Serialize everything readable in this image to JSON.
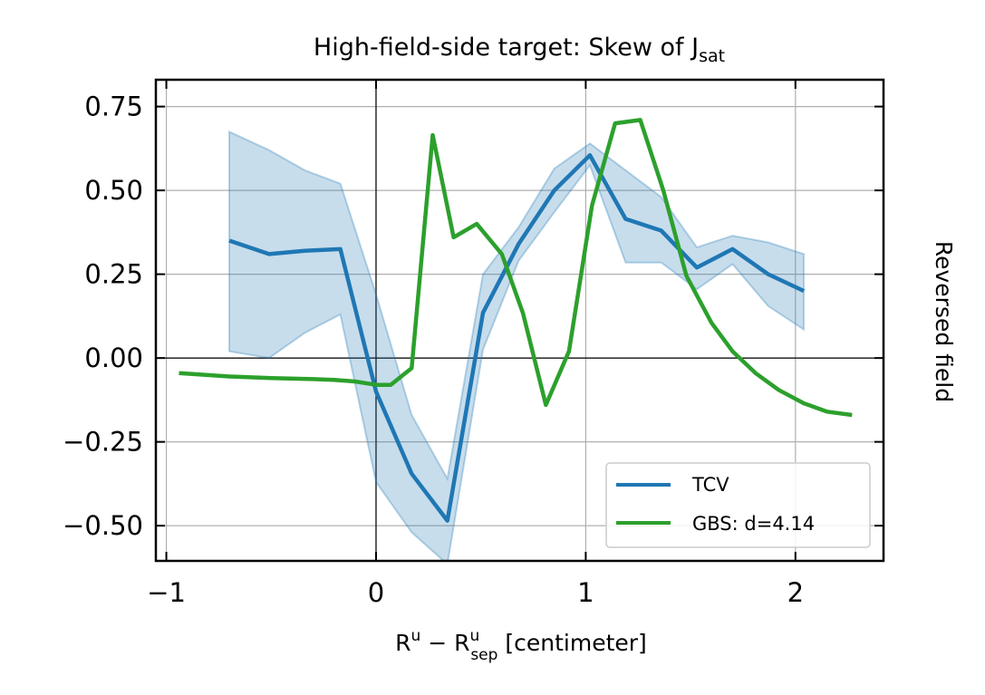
{
  "chart_data": {
    "type": "line",
    "title": "High-field-side target: Skew of J",
    "title_sub": "sat",
    "xlabel": {
      "base1": "R",
      "sup1": "u",
      "minus": " − ",
      "base2": "R",
      "sup2": "u",
      "sub2": "sep",
      "unit": " [centimeter]"
    },
    "side_label": "Reversed field",
    "xlim": [
      -1.05,
      2.42
    ],
    "ylim": [
      -0.605,
      0.83
    ],
    "xticks": [
      -1,
      0,
      1,
      2
    ],
    "xtick_labels": [
      "−1",
      "0",
      "1",
      "2"
    ],
    "yticks": [
      0.75,
      0.5,
      0.25,
      0.0,
      -0.25,
      -0.5
    ],
    "ytick_labels": [
      "0.75",
      "0.50",
      "0.25",
      "0.00",
      "−0.25",
      "−0.50"
    ],
    "grid": true,
    "zero_lines": true,
    "legend_position": "lower-right",
    "series": [
      {
        "name": "TCV",
        "color": "#1f77b4",
        "x": [
          -0.7,
          -0.51,
          -0.34,
          -0.17,
          0.0,
          0.17,
          0.34,
          0.51,
          0.68,
          0.85,
          1.02,
          1.19,
          1.36,
          1.53,
          1.7,
          1.87,
          2.04
        ],
        "y": [
          0.35,
          0.31,
          0.32,
          0.325,
          -0.1,
          -0.345,
          -0.485,
          0.135,
          0.34,
          0.5,
          0.605,
          0.415,
          0.38,
          0.27,
          0.325,
          0.25,
          0.2
        ],
        "upper": [
          0.675,
          0.62,
          0.56,
          0.52,
          0.19,
          -0.17,
          -0.36,
          0.25,
          0.39,
          0.565,
          0.64,
          0.56,
          0.48,
          0.33,
          0.365,
          0.345,
          0.31
        ],
        "lower": [
          0.02,
          0.0,
          0.075,
          0.13,
          -0.37,
          -0.52,
          -0.615,
          0.025,
          0.29,
          0.435,
          0.575,
          0.285,
          0.285,
          0.205,
          0.28,
          0.155,
          0.085
        ]
      },
      {
        "name": "GBS: d=4.14",
        "color": "#2ca02c",
        "x": [
          -0.94,
          -0.7,
          -0.5,
          -0.3,
          -0.2,
          -0.1,
          0.0,
          0.07,
          0.17,
          0.27,
          0.37,
          0.48,
          0.6,
          0.7,
          0.81,
          0.92,
          1.03,
          1.14,
          1.26,
          1.37,
          1.48,
          1.6,
          1.7,
          1.81,
          1.92,
          2.04,
          2.15,
          2.27
        ],
        "y": [
          -0.045,
          -0.055,
          -0.06,
          -0.063,
          -0.065,
          -0.07,
          -0.08,
          -0.08,
          -0.03,
          0.665,
          0.36,
          0.4,
          0.31,
          0.135,
          -0.14,
          0.02,
          0.455,
          0.7,
          0.71,
          0.5,
          0.245,
          0.105,
          0.02,
          -0.045,
          -0.095,
          -0.135,
          -0.16,
          -0.17
        ]
      }
    ]
  }
}
